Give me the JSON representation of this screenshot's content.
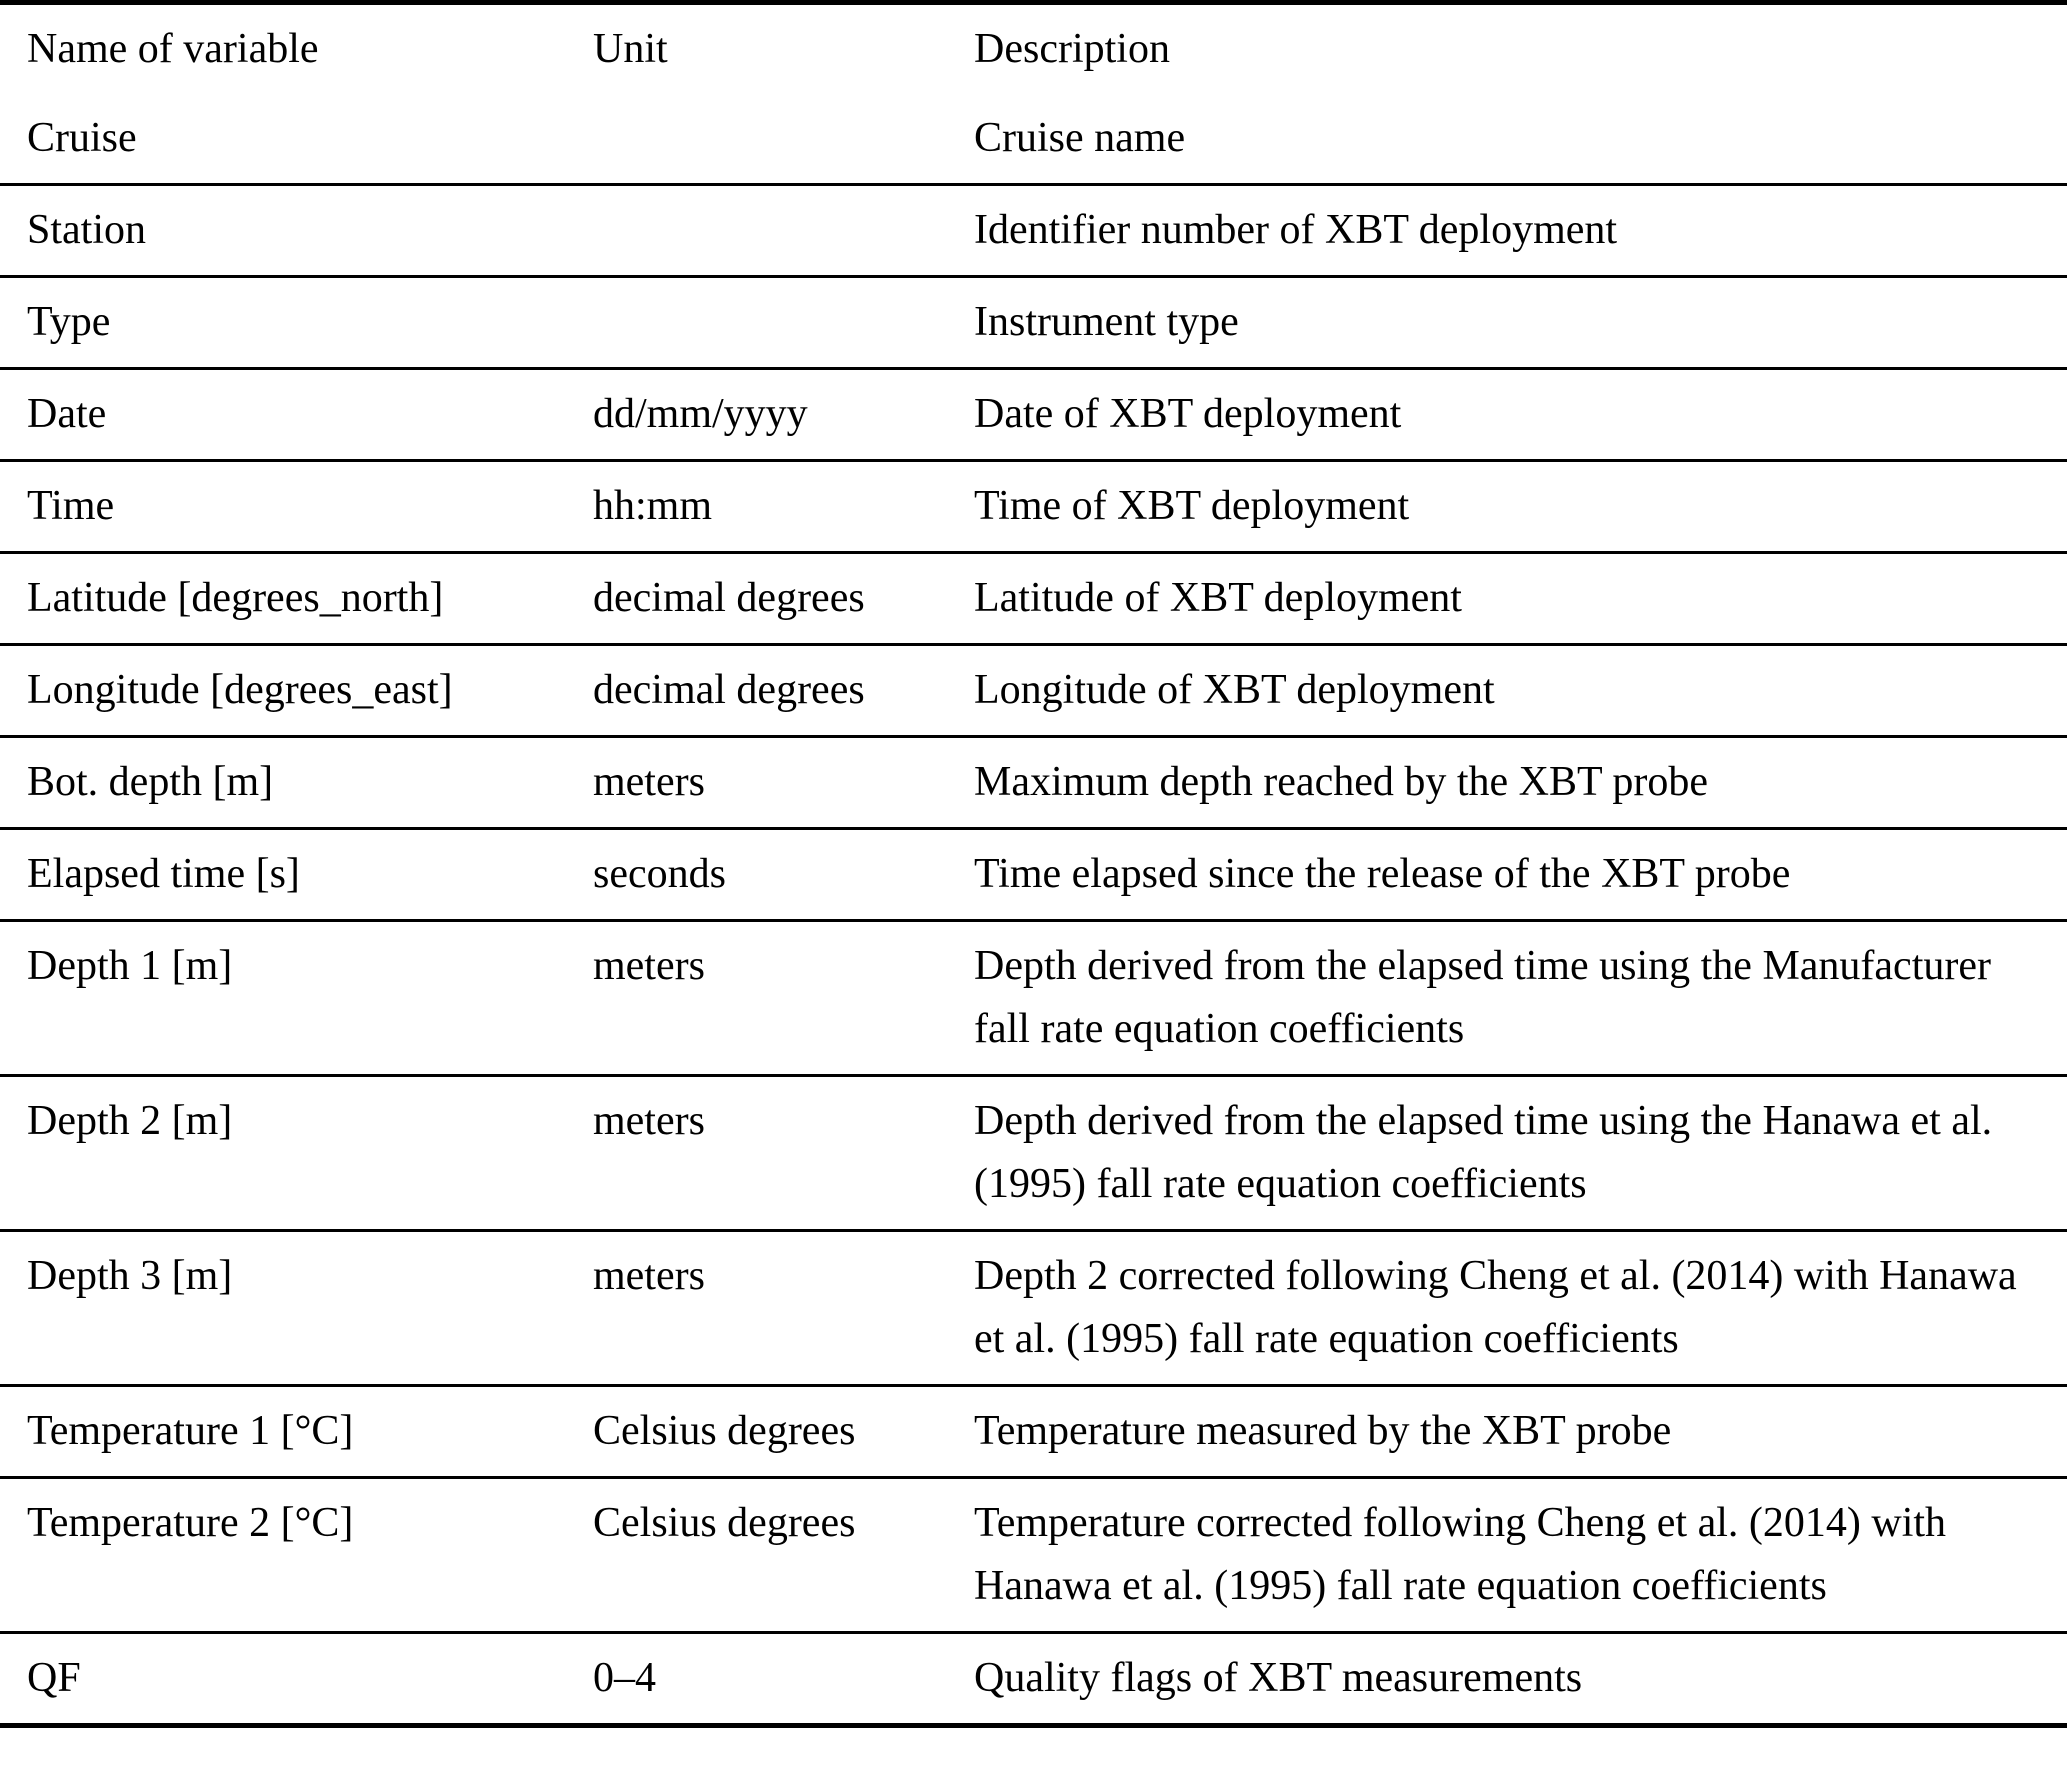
{
  "table": {
    "columns": [
      "Name of variable",
      "Unit",
      "Description"
    ],
    "rows": [
      {
        "name": "Cruise",
        "unit": "",
        "description": "Cruise name"
      },
      {
        "name": "Station",
        "unit": "",
        "description": "Identifier number of XBT deployment"
      },
      {
        "name": "Type",
        "unit": "",
        "description": "Instrument type"
      },
      {
        "name": "Date",
        "unit": "dd/mm/yyyy",
        "description": "Date of XBT deployment"
      },
      {
        "name": "Time",
        "unit": "hh:mm",
        "description": "Time of XBT deployment"
      },
      {
        "name": "Latitude [degrees_north]",
        "unit": "decimal degrees",
        "description": "Latitude of XBT deployment"
      },
      {
        "name": "Longitude [degrees_east]",
        "unit": "decimal degrees",
        "description": "Longitude of XBT deployment"
      },
      {
        "name": "Bot. depth [m]",
        "unit": "meters",
        "description": "Maximum depth reached by the XBT probe"
      },
      {
        "name": "Elapsed time [s]",
        "unit": "seconds",
        "description": "Time elapsed since the release of the XBT probe"
      },
      {
        "name": "Depth 1 [m]",
        "unit": "meters",
        "description": "Depth derived from the elapsed time using the Manufacturer fall rate equation coefficients"
      },
      {
        "name": "Depth 2 [m]",
        "unit": "meters",
        "description": "Depth derived from the elapsed time using the Hanawa et al. (1995) fall rate equation coefficients"
      },
      {
        "name": "Depth 3 [m]",
        "unit": "meters",
        "description": "Depth 2 corrected following Cheng et al. (2014) with Hanawa et al. (1995) fall rate equation coefficients"
      },
      {
        "name": "Temperature 1 [°C]",
        "unit": "Celsius degrees",
        "description": "Temperature measured by the XBT probe"
      },
      {
        "name": "Temperature 2 [°C]",
        "unit": "Celsius degrees",
        "description": "Temperature corrected following Cheng et al. (2014) with Hanawa et al. (1995) fall rate equation coefficients"
      },
      {
        "name": "QF",
        "unit": "0–4",
        "description": "Quality flags of XBT measurements"
      }
    ]
  }
}
